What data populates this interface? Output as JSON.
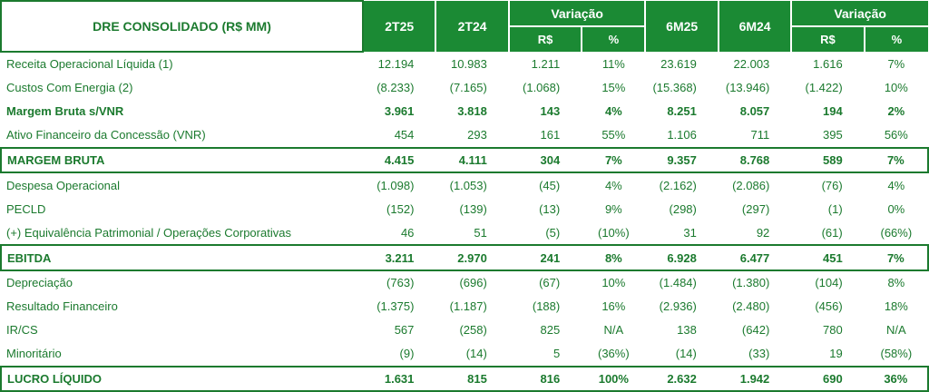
{
  "table": {
    "title": "DRE CONSOLIDADO (R$ MM)",
    "period_headers": [
      "2T25",
      "2T24",
      "6M25",
      "6M24"
    ],
    "variation_label": "Variação",
    "sub_headers": [
      "R$",
      "%"
    ],
    "rows": [
      {
        "label": "Receita  Operacional Líquida (1)",
        "style": "normal",
        "values": [
          "12.194",
          "10.983",
          "1.211",
          "11%",
          "23.619",
          "22.003",
          "1.616",
          "7%"
        ]
      },
      {
        "label": "Custos Com Energia (2)",
        "style": "normal",
        "values": [
          "(8.233)",
          "(7.165)",
          "(1.068)",
          "15%",
          "(15.368)",
          "(13.946)",
          "(1.422)",
          "10%"
        ]
      },
      {
        "label": "Margem Bruta s/VNR",
        "style": "bold",
        "values": [
          "3.961",
          "3.818",
          "143",
          "4%",
          "8.251",
          "8.057",
          "194",
          "2%"
        ]
      },
      {
        "label": "Ativo Financeiro da Concessão (VNR)",
        "style": "normal",
        "values": [
          "454",
          "293",
          "161",
          "55%",
          "1.106",
          "711",
          "395",
          "56%"
        ]
      },
      {
        "label": "MARGEM BRUTA",
        "style": "boxed",
        "values": [
          "4.415",
          "4.111",
          "304",
          "7%",
          "9.357",
          "8.768",
          "589",
          "7%"
        ]
      },
      {
        "label": "Despesa Operacional",
        "style": "normal",
        "values": [
          "(1.098)",
          "(1.053)",
          "(45)",
          "4%",
          "(2.162)",
          "(2.086)",
          "(76)",
          "4%"
        ]
      },
      {
        "label": "PECLD",
        "style": "normal",
        "values": [
          "(152)",
          "(139)",
          "(13)",
          "9%",
          "(298)",
          "(297)",
          "(1)",
          "0%"
        ]
      },
      {
        "label": "(+) Equivalência Patrimonial / Operações Corporativas",
        "style": "normal",
        "values": [
          "46",
          "51",
          "(5)",
          "(10%)",
          "31",
          "92",
          "(61)",
          "(66%)"
        ]
      },
      {
        "label": "EBITDA",
        "style": "boxed",
        "values": [
          "3.211",
          "2.970",
          "241",
          "8%",
          "6.928",
          "6.477",
          "451",
          "7%"
        ]
      },
      {
        "label": "Depreciação",
        "style": "normal",
        "values": [
          "(763)",
          "(696)",
          "(67)",
          "10%",
          "(1.484)",
          "(1.380)",
          "(104)",
          "8%"
        ]
      },
      {
        "label": "Resultado Financeiro",
        "style": "normal",
        "values": [
          "(1.375)",
          "(1.187)",
          "(188)",
          "16%",
          "(2.936)",
          "(2.480)",
          "(456)",
          "18%"
        ]
      },
      {
        "label": "IR/CS",
        "style": "normal",
        "values": [
          "567",
          "(258)",
          "825",
          "N/A",
          "138",
          "(642)",
          "780",
          "N/A"
        ]
      },
      {
        "label": "Minoritário",
        "style": "normal",
        "values": [
          "(9)",
          "(14)",
          "5",
          "(36%)",
          "(14)",
          "(33)",
          "19",
          "(58%)"
        ]
      },
      {
        "label": "LUCRO LÍQUIDO",
        "style": "boxed",
        "values": [
          "1.631",
          "815",
          "816",
          "100%",
          "2.632",
          "1.942",
          "690",
          "36%"
        ]
      }
    ]
  },
  "colors": {
    "header_bg": "#1b8a34",
    "text": "#1b7a2e",
    "border": "#1b7a2e"
  }
}
